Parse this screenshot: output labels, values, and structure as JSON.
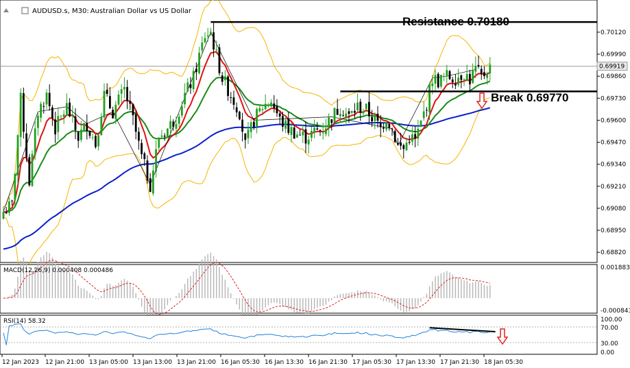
{
  "header": {
    "symbol": "AUDUSD.s, M30: ",
    "description": "Australian Dollar vs US Dollar"
  },
  "annotations": {
    "resistance": "Resistance 0.70180",
    "break": "Break 0.69770"
  },
  "colors": {
    "bull_candle": "#21a021",
    "bear_candle": "#000000",
    "bollinger": "#f5b400",
    "ema_fast": "#e01010",
    "ema_mid": "#168a16",
    "ema_slow": "#0a1ecc",
    "arrow": "#e02020",
    "rsi_line": "#1e82dc",
    "macd_signal": "#e02020",
    "macd_hist": "#b4b4b4"
  },
  "chart_data": [
    {
      "type": "candlestick",
      "title": "AUDUSD.s, M30: Australian Dollar vs US Dollar",
      "ylim": [
        0.6876,
        0.7031
      ],
      "y_ticks": [
        "0.70120",
        "0.69990",
        "0.69860",
        "0.69730",
        "0.69600",
        "0.69470",
        "0.69340",
        "0.69210",
        "0.69080",
        "0.68950",
        "0.68820"
      ],
      "current_price": "0.69919",
      "x_ticks": [
        "12 Jan 2023",
        "12 Jan 21:00",
        "13 Jan 05:00",
        "13 Jan 13:00",
        "13 Jan 21:00",
        "16 Jan 05:30",
        "16 Jan 13:30",
        "16 Jan 21:30",
        "17 Jan 05:30",
        "17 Jan 13:30",
        "17 Jan 21:30",
        "18 Jan 05:30"
      ],
      "close_path": [
        [
          0,
          0.6906
        ],
        [
          3,
          0.691
        ],
        [
          6,
          0.6972
        ],
        [
          9,
          0.6924
        ],
        [
          12,
          0.6965
        ],
        [
          15,
          0.6975
        ],
        [
          18,
          0.6955
        ],
        [
          22,
          0.6968
        ],
        [
          26,
          0.695
        ],
        [
          29,
          0.6958
        ],
        [
          32,
          0.6946
        ],
        [
          35,
          0.6975
        ],
        [
          38,
          0.6965
        ],
        [
          42,
          0.6978
        ],
        [
          45,
          0.696
        ],
        [
          48,
          0.6938
        ],
        [
          51,
          0.6922
        ],
        [
          54,
          0.695
        ],
        [
          57,
          0.6955
        ],
        [
          60,
          0.6962
        ],
        [
          63,
          0.6975
        ],
        [
          66,
          0.6985
        ],
        [
          68,
          0.6998
        ],
        [
          70,
          0.701
        ],
        [
          72,
          0.7012
        ],
        [
          74,
          0.6998
        ],
        [
          76,
          0.6985
        ],
        [
          79,
          0.6975
        ],
        [
          82,
          0.6965
        ],
        [
          84,
          0.6945
        ],
        [
          87,
          0.696
        ],
        [
          90,
          0.6968
        ],
        [
          93,
          0.6972
        ],
        [
          96,
          0.696
        ],
        [
          99,
          0.6955
        ],
        [
          102,
          0.6952
        ],
        [
          105,
          0.695
        ],
        [
          108,
          0.6953
        ],
        [
          111,
          0.6955
        ],
        [
          114,
          0.6962
        ],
        [
          117,
          0.6968
        ],
        [
          120,
          0.6962
        ],
        [
          123,
          0.6968
        ],
        [
          126,
          0.6966
        ],
        [
          129,
          0.696
        ],
        [
          131,
          0.6955
        ],
        [
          133,
          0.6962
        ],
        [
          135,
          0.6955
        ],
        [
          137,
          0.6945
        ],
        [
          139,
          0.6943
        ],
        [
          141,
          0.695
        ],
        [
          143,
          0.6948
        ],
        [
          145,
          0.6958
        ],
        [
          147,
          0.697
        ],
        [
          149,
          0.6985
        ],
        [
          151,
          0.6983
        ],
        [
          154,
          0.6986
        ],
        [
          157,
          0.6985
        ],
        [
          160,
          0.6988
        ],
        [
          162,
          0.6984
        ],
        [
          164,
          0.699
        ],
        [
          166,
          0.6985
        ],
        [
          168,
          0.699
        ],
        [
          169,
          0.6991
        ]
      ],
      "series": [
        {
          "name": "EMA fast",
          "color_key": "ema_fast"
        },
        {
          "name": "EMA mid",
          "color_key": "ema_mid"
        },
        {
          "name": "EMA slow",
          "color_key": "ema_slow"
        },
        {
          "name": "Bollinger Bands",
          "color_key": "bollinger"
        }
      ],
      "horizontal_lines": [
        {
          "label": "Resistance 0.70180",
          "value": 0.7018,
          "x_from": 72
        },
        {
          "label": "Break 0.69770",
          "value": 0.6977,
          "x_from": 117
        }
      ]
    },
    {
      "type": "bar",
      "title": "MACD(12,26,9) 0.000408 0.000486",
      "indicator": "MACD(12,26,9)",
      "values_text": "0.000408 0.000486",
      "y_ticks": [
        "0.001883",
        "-0.000843"
      ],
      "ylim": [
        -0.000843,
        0.001883
      ]
    },
    {
      "type": "line",
      "title": "RSI(14) 58.32",
      "indicator": "RSI(14)",
      "value_text": "58.32",
      "y_ticks": [
        "100.00",
        "70.00",
        "30.00",
        "0.00"
      ],
      "ylim": [
        0,
        100
      ],
      "levels": [
        70,
        30
      ],
      "trendline": [
        [
          148,
          68
        ],
        [
          168,
          58
        ]
      ]
    }
  ]
}
